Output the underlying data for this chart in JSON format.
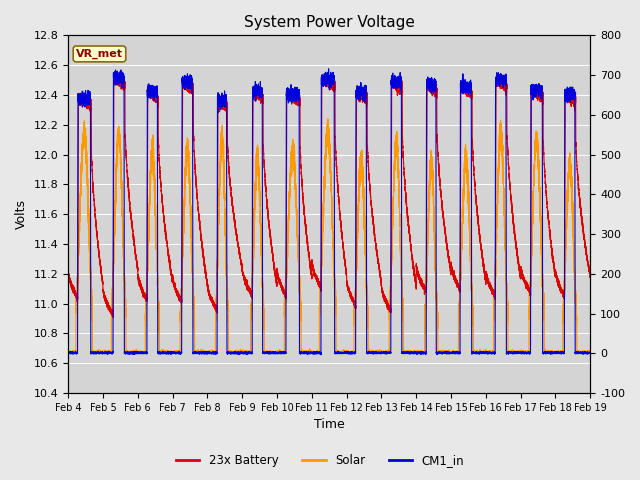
{
  "title": "System Power Voltage",
  "xlabel": "Time",
  "ylabel_left": "Volts",
  "ylim_left": [
    10.4,
    12.8
  ],
  "ylim_right": [
    -100,
    800
  ],
  "background_color": "#e8e8e8",
  "plot_bg_color": "#d4d4d4",
  "legend_labels": [
    "23x Battery",
    "Solar",
    "CM1_in"
  ],
  "legend_colors": [
    "#dd0000",
    "#ff9900",
    "#0000dd"
  ],
  "annotation_text": "VR_met",
  "annotation_color": "#8b0000",
  "xtick_labels": [
    "Feb 4",
    "Feb 5",
    "Feb 6",
    "Feb 7",
    "Feb 8",
    "Feb 9",
    "Feb 10",
    "Feb 11",
    "Feb 12",
    "Feb 13",
    "Feb 14",
    "Feb 15",
    "Feb 16",
    "Feb 17",
    "Feb 18",
    "Feb 19"
  ],
  "yticks_left": [
    10.4,
    10.6,
    10.8,
    11.0,
    11.2,
    11.4,
    11.6,
    11.8,
    12.0,
    12.2,
    12.4,
    12.6,
    12.8
  ],
  "yticks_right": [
    -100,
    0,
    100,
    200,
    300,
    400,
    500,
    600,
    700,
    800
  ],
  "n_days": 15,
  "seed": 42
}
